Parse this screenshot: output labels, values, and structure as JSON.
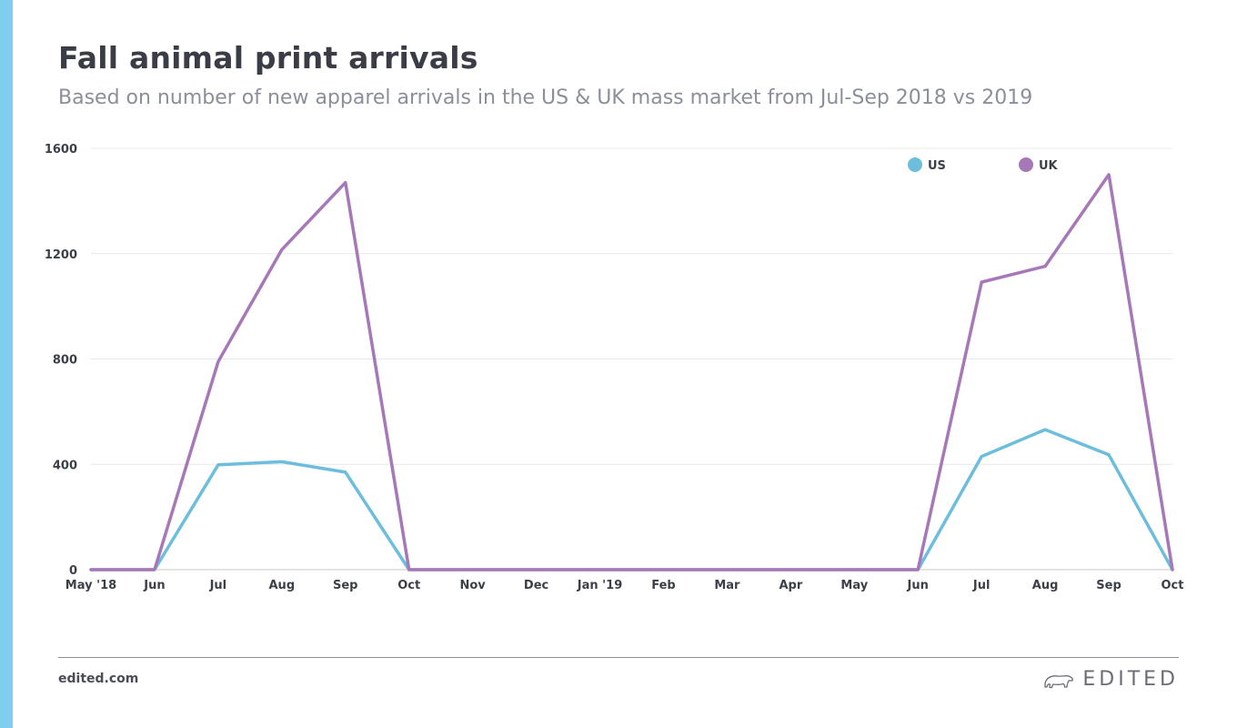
{
  "header": {
    "title": "Fall animal print arrivals",
    "subtitle": "Based on number of new apparel arrivals in the US & UK mass market from Jul-Sep 2018 vs 2019"
  },
  "footer": {
    "url": "edited.com",
    "brand": "EDITED"
  },
  "chart_data": {
    "type": "line",
    "title": "Fall animal print arrivals",
    "subtitle": "Based on number of new apparel arrivals in the US & UK mass market from Jul-Sep 2018 vs 2019",
    "xlabel": "",
    "ylabel": "",
    "categories": [
      "May '18",
      "Jun",
      "Jul",
      "Aug",
      "Sep",
      "Oct",
      "Nov",
      "Dec",
      "Jan '19",
      "Feb",
      "Mar",
      "Apr",
      "May",
      "Jun",
      "Jul",
      "Aug",
      "Sep",
      "Oct"
    ],
    "ylim": [
      0,
      1600
    ],
    "yticks": [
      0,
      400,
      800,
      1200,
      1600
    ],
    "grid": true,
    "legend": "top-right",
    "series": [
      {
        "name": "US",
        "color": "#6dbddc",
        "values": [
          0,
          0,
          398,
          410,
          370,
          0,
          0,
          0,
          0,
          0,
          0,
          0,
          0,
          0,
          430,
          532,
          436,
          0
        ]
      },
      {
        "name": "UK",
        "color": "#a678b8",
        "values": [
          0,
          0,
          790,
          1215,
          1470,
          0,
          0,
          0,
          0,
          0,
          0,
          0,
          0,
          0,
          1092,
          1152,
          1500,
          0
        ]
      }
    ]
  }
}
